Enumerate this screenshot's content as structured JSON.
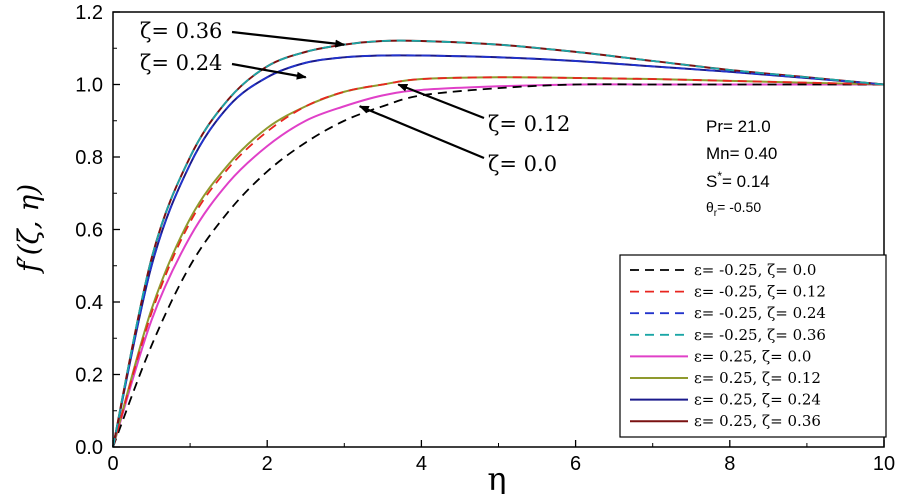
{
  "chart_data": {
    "type": "line",
    "xlabel": "η",
    "ylabel": "f′(ζ, η)",
    "xlim": [
      0,
      10
    ],
    "ylim": [
      0,
      1.2
    ],
    "xticks": [
      0,
      2,
      4,
      6,
      8,
      10
    ],
    "yticks": [
      0.0,
      0.2,
      0.4,
      0.6,
      0.8,
      1.0,
      1.2
    ],
    "xtick_labels": [
      "0",
      "2",
      "4",
      "6",
      "8",
      "10"
    ],
    "ytick_labels": [
      "0.0",
      "0.2",
      "0.4",
      "0.6",
      "0.8",
      "1.0",
      "1.2"
    ],
    "grid": false,
    "legend_position": "bottom-right",
    "x": [
      0,
      0.5,
      1,
      1.5,
      2,
      2.5,
      3,
      3.5,
      4,
      5,
      6,
      7,
      8,
      9,
      10
    ],
    "series": [
      {
        "name": "ε= -0.25, ζ= 0.0",
        "color": "#000000",
        "dash": "dashed",
        "values": [
          0.0,
          0.28,
          0.5,
          0.65,
          0.76,
          0.84,
          0.9,
          0.94,
          0.97,
          0.99,
          1.0,
          1.0,
          1.0,
          1.0,
          1.0
        ]
      },
      {
        "name": "ε= -0.25, ζ= 0.12",
        "color": "#e8251f",
        "dash": "dashed",
        "values": [
          0.0,
          0.37,
          0.62,
          0.77,
          0.87,
          0.94,
          0.98,
          1.0,
          1.015,
          1.02,
          1.018,
          1.015,
          1.01,
          1.005,
          1.0
        ]
      },
      {
        "name": "ε= -0.25, ζ= 0.24",
        "color": "#2233cc",
        "dash": "dashed",
        "values": [
          0.0,
          0.5,
          0.78,
          0.94,
          1.02,
          1.06,
          1.075,
          1.08,
          1.08,
          1.075,
          1.065,
          1.05,
          1.035,
          1.018,
          1.0
        ]
      },
      {
        "name": "ε= -0.25, ζ= 0.36",
        "color": "#1aa6a6",
        "dash": "dashed",
        "values": [
          0.0,
          0.52,
          0.8,
          0.96,
          1.05,
          1.09,
          1.11,
          1.12,
          1.12,
          1.11,
          1.09,
          1.065,
          1.04,
          1.02,
          1.0
        ]
      },
      {
        "name": "ε= 0.25, ζ= 0.0",
        "color": "#e040c8",
        "dash": "solid",
        "values": [
          0.0,
          0.35,
          0.58,
          0.73,
          0.83,
          0.9,
          0.94,
          0.97,
          0.985,
          0.995,
          1.0,
          1.0,
          1.0,
          1.0,
          1.0
        ]
      },
      {
        "name": "ε= 0.25, ζ= 0.12",
        "color": "#8f9a2e",
        "dash": "solid",
        "values": [
          0.0,
          0.38,
          0.63,
          0.78,
          0.88,
          0.94,
          0.98,
          1.0,
          1.015,
          1.02,
          1.018,
          1.015,
          1.01,
          1.005,
          1.0
        ]
      },
      {
        "name": "ε= 0.25, ζ= 0.24",
        "color": "#1a1a8c",
        "dash": "solid",
        "values": [
          0.0,
          0.5,
          0.78,
          0.94,
          1.02,
          1.06,
          1.075,
          1.08,
          1.08,
          1.075,
          1.065,
          1.05,
          1.035,
          1.018,
          1.0
        ]
      },
      {
        "name": "ε= 0.25, ζ= 0.36",
        "color": "#7a1111",
        "dash": "solid",
        "values": [
          0.0,
          0.52,
          0.8,
          0.96,
          1.05,
          1.09,
          1.11,
          1.12,
          1.12,
          1.11,
          1.09,
          1.065,
          1.04,
          1.02,
          1.0
        ]
      }
    ],
    "annotations": [
      {
        "text": "ζ= 0.36",
        "target": [
          3.0,
          1.11
        ]
      },
      {
        "text": "ζ= 0.24",
        "target": [
          2.5,
          1.02
        ]
      },
      {
        "text": "ζ= 0.12",
        "target": [
          3.7,
          1.0
        ]
      },
      {
        "text": "ζ= 0.0",
        "target": [
          3.2,
          0.94
        ]
      }
    ],
    "parameters": [
      {
        "text": "Pr= 21.0"
      },
      {
        "text": "Mn= 0.40"
      },
      {
        "text": "S*= 0.14",
        "base": "S",
        "sup": "*",
        "rest": "= 0.14"
      },
      {
        "text": "θr= -0.50",
        "base": "θ",
        "sub": "r",
        "rest": "= -0.50"
      }
    ]
  }
}
